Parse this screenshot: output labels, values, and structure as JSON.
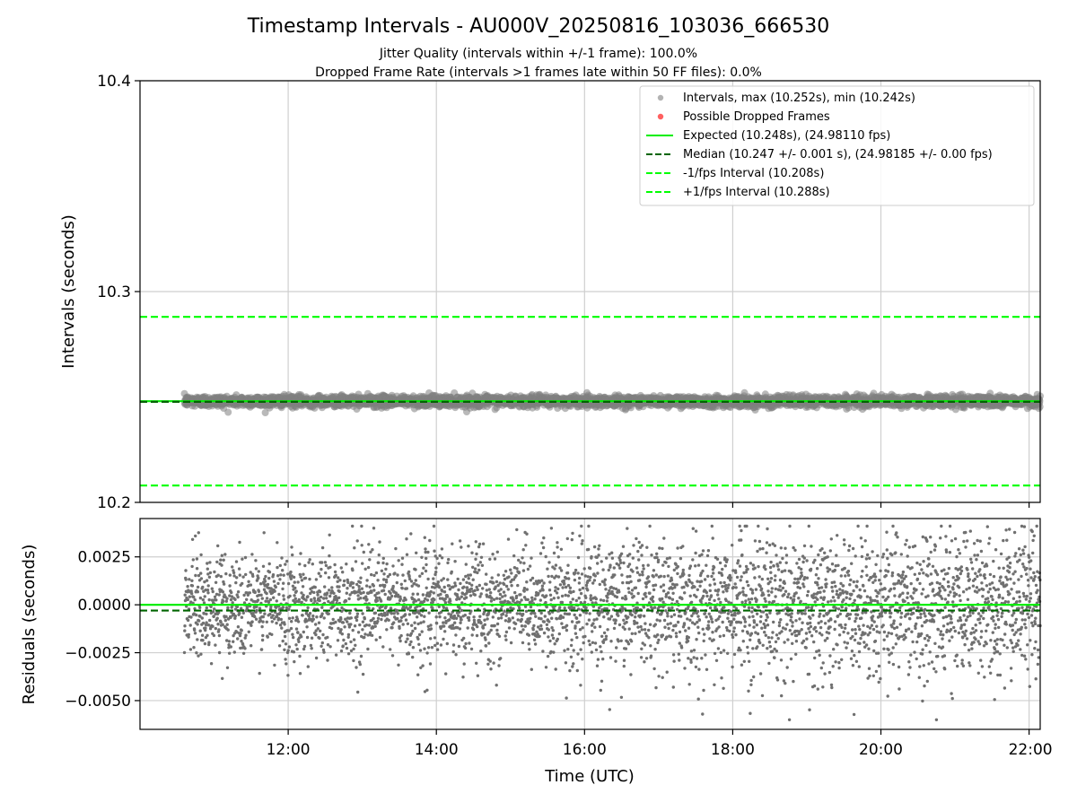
{
  "chart_data": [
    {
      "type": "scatter",
      "title": "Timestamp Intervals - AU000V_20250816_103036_666530",
      "subtitle_lines": [
        "Jitter Quality (intervals within +/-1 frame): 100.0%",
        "Dropped Frame Rate (intervals >1 frames late within 50 FF files): 0.0%"
      ],
      "ylabel": "Intervals (seconds)",
      "ylim": [
        10.2,
        10.4
      ],
      "yticks": [
        10.2,
        10.3,
        10.4
      ],
      "ytick_labels": [
        "10.2",
        "10.3",
        "10.4"
      ],
      "xlim_hours": [
        10.0,
        22.15
      ],
      "xticks_hours": [
        12,
        14,
        16,
        18,
        20,
        22
      ],
      "grid": true,
      "legend_position": "upper-right",
      "series": [
        {
          "name": "Intervals, max (10.252s), min (10.242s)",
          "kind": "scatter",
          "color": "#808080",
          "x_range_hours": [
            10.6,
            22.15
          ],
          "center": 10.248,
          "min": 10.242,
          "max": 10.252,
          "jitter_sd": 0.0013
        },
        {
          "name": "Possible Dropped Frames",
          "kind": "scatter",
          "color": "#ff6060",
          "values": []
        },
        {
          "name": "Expected (10.248s), (24.98110 fps)",
          "kind": "hline",
          "y": 10.248,
          "color": "#00ee00",
          "style": "solid"
        },
        {
          "name": "Median (10.247 +/- 0.001 s), (24.98185 +/- 0.00 fps)",
          "kind": "hline",
          "y": 10.2477,
          "color": "#006400",
          "style": "dashed"
        },
        {
          "name": "-1/fps Interval (10.208s)",
          "kind": "hline",
          "y": 10.208,
          "color": "#00ff00",
          "style": "dashed"
        },
        {
          "name": "+1/fps Interval (10.288s)",
          "kind": "hline",
          "y": 10.288,
          "color": "#00ff00",
          "style": "dashed"
        }
      ]
    },
    {
      "type": "scatter",
      "xlabel": "Time (UTC)",
      "ylabel": "Residuals (seconds)",
      "ylim": [
        -0.0065,
        0.0045
      ],
      "yticks": [
        0.0025,
        0.0,
        -0.0025,
        -0.005
      ],
      "ytick_labels": [
        "0.0025",
        "0.0000",
        "−0.0025",
        "−0.0050"
      ],
      "xlim_hours": [
        10.0,
        22.15
      ],
      "xticks_hours": [
        12,
        14,
        16,
        18,
        20,
        22
      ],
      "xtick_labels": [
        "12:00",
        "14:00",
        "16:00",
        "18:00",
        "20:00",
        "22:00"
      ],
      "grid": true,
      "series": [
        {
          "name": "",
          "kind": "scatter",
          "color": "#707070",
          "x_range_hours": [
            10.6,
            22.15
          ],
          "n_points": 4000,
          "sd_start": 0.0013,
          "sd_end": 0.0019,
          "min": -0.006,
          "max": 0.0041
        },
        {
          "name": "",
          "kind": "hline",
          "y": 0.0,
          "color": "#00ee00",
          "style": "solid"
        },
        {
          "name": "",
          "kind": "hline",
          "y": -0.0003,
          "color": "#006400",
          "style": "dashed"
        }
      ]
    }
  ]
}
